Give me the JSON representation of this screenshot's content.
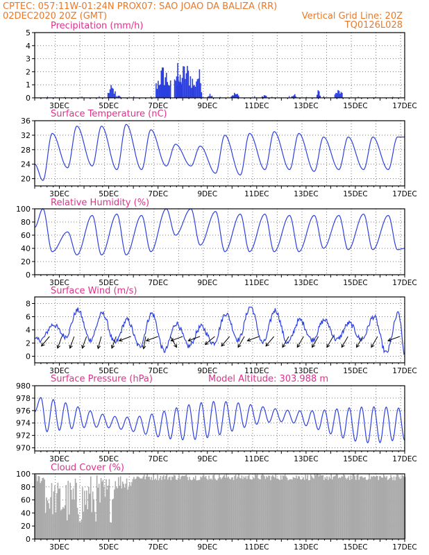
{
  "header": {
    "line1_left": "CPTEC:   057:11W-01:24N   PROX07: SAO JOAO DA BALIZA (RR)",
    "line2_left": "02DEC2020 20Z (GMT)",
    "line2_right": "Vertical Grid Line: 20Z",
    "line3_right": "TQ0126L028"
  },
  "colors": {
    "header": "#e8792a",
    "panel_title": "#e0308c",
    "series": "#2b3fe0",
    "cloud": "#aaaaaa",
    "grid": "#777777"
  },
  "chart_data": [
    {
      "type": "bar",
      "title": "Precipitation (mm/h)",
      "ylim": [
        0,
        5
      ],
      "yticks": [
        0,
        1,
        2,
        3,
        4,
        5
      ],
      "xlabels": [
        "3DEC",
        "5DEC",
        "7DEC",
        "9DEC",
        "11DEC",
        "13DEC",
        "15DEC",
        "17DEC"
      ],
      "bursts": [
        {
          "x_day": 5.1,
          "width_days": 0.3,
          "max": 1.0
        },
        {
          "x_day": 5.4,
          "width_days": 0.15,
          "max": 0.2
        },
        {
          "x_day": 7.2,
          "width_days": 0.6,
          "max": 2.6
        },
        {
          "x_day": 7.8,
          "width_days": 0.3,
          "max": 3.1
        },
        {
          "x_day": 8.1,
          "width_days": 0.7,
          "max": 2.8
        },
        {
          "x_day": 8.6,
          "width_days": 0.3,
          "max": 2.5
        },
        {
          "x_day": 9.1,
          "width_days": 0.2,
          "max": 0.4
        },
        {
          "x_day": 10.1,
          "width_days": 0.3,
          "max": 0.45
        },
        {
          "x_day": 11.3,
          "width_days": 0.2,
          "max": 0.3
        },
        {
          "x_day": 12.5,
          "width_days": 0.2,
          "max": 0.3
        },
        {
          "x_day": 13.5,
          "width_days": 0.15,
          "max": 0.7
        },
        {
          "x_day": 14.3,
          "width_days": 0.3,
          "max": 0.7
        }
      ]
    },
    {
      "type": "line",
      "title": "Surface Temperature (nC)",
      "ylim": [
        18,
        36
      ],
      "yticks": [
        20,
        24,
        28,
        32,
        36
      ],
      "xlabels": [
        "3DEC",
        "5DEC",
        "7DEC",
        "9DEC",
        "11DEC",
        "13DEC",
        "15DEC",
        "17DEC"
      ],
      "peaks": [
        32.5,
        34.5,
        34.5,
        35.0,
        33.5,
        29.5,
        29.0,
        32.0,
        32.5,
        33.0,
        32.5,
        31.5,
        31.5,
        31.5,
        31.5
      ],
      "troughs": [
        19.5,
        23.0,
        23.5,
        22.5,
        22.5,
        23.5,
        23.5,
        21.5,
        21.0,
        22.5,
        22.5,
        22.0,
        22.5,
        22.5,
        22.5
      ],
      "start": 24.0,
      "end": 31.5
    },
    {
      "type": "line",
      "title": "Relative Humidity (%)",
      "ylim": [
        0,
        100
      ],
      "yticks": [
        0,
        20,
        40,
        60,
        80,
        100
      ],
      "xlabels": [
        "3DEC",
        "5DEC",
        "7DEC",
        "9DEC",
        "11DEC",
        "13DEC",
        "15DEC",
        "17DEC"
      ],
      "peaks": [
        100,
        65,
        90,
        92,
        90,
        100,
        100,
        96,
        92,
        92,
        90,
        90,
        90,
        92,
        90
      ],
      "troughs": [
        35,
        30,
        30,
        30,
        35,
        60,
        45,
        35,
        35,
        35,
        35,
        40,
        38,
        38,
        38
      ],
      "start": 72,
      "end": 40
    },
    {
      "type": "line",
      "title": "Surface Wind (m/s)",
      "ylim": [
        -1,
        9
      ],
      "yticks": [
        0,
        2,
        4,
        6,
        8
      ],
      "xlabels": [
        "3DEC",
        "5DEC",
        "7DEC",
        "9DEC",
        "11DEC",
        "13DEC",
        "15DEC",
        "17DEC"
      ],
      "peaks": [
        4.8,
        7.0,
        6.5,
        5.5,
        6.5,
        5.0,
        4.5,
        6.5,
        7.5,
        7.0,
        5.5,
        5.5,
        5.0,
        6.0,
        6.5
      ],
      "troughs": [
        2.5,
        3.0,
        2.5,
        2.0,
        1.5,
        0.8,
        1.5,
        2.0,
        2.5,
        2.0,
        2.0,
        2.5,
        2.5,
        2.5,
        0.5
      ],
      "start": 2.5,
      "end": 0.4,
      "arrows": [
        {
          "x_day": 2.6,
          "dir_deg": 230
        },
        {
          "x_day": 3.1,
          "dir_deg": 250
        },
        {
          "x_day": 3.6,
          "dir_deg": 250
        },
        {
          "x_day": 4.1,
          "dir_deg": 250
        },
        {
          "x_day": 4.7,
          "dir_deg": 255
        },
        {
          "x_day": 5.3,
          "dir_deg": 250
        },
        {
          "x_day": 5.9,
          "dir_deg": 200
        },
        {
          "x_day": 6.5,
          "dir_deg": 260
        },
        {
          "x_day": 7.0,
          "dir_deg": 200
        },
        {
          "x_day": 7.5,
          "dir_deg": 300
        },
        {
          "x_day": 8.0,
          "dir_deg": 200
        },
        {
          "x_day": 8.7,
          "dir_deg": 200
        },
        {
          "x_day": 9.3,
          "dir_deg": 220
        },
        {
          "x_day": 9.9,
          "dir_deg": 230
        },
        {
          "x_day": 10.5,
          "dir_deg": 240
        },
        {
          "x_day": 11.1,
          "dir_deg": 200
        },
        {
          "x_day": 11.7,
          "dir_deg": 230
        },
        {
          "x_day": 12.3,
          "dir_deg": 240
        },
        {
          "x_day": 12.9,
          "dir_deg": 240
        },
        {
          "x_day": 13.5,
          "dir_deg": 240
        },
        {
          "x_day": 14.1,
          "dir_deg": 240
        },
        {
          "x_day": 14.7,
          "dir_deg": 240
        },
        {
          "x_day": 15.3,
          "dir_deg": 240
        },
        {
          "x_day": 15.9,
          "dir_deg": 240
        },
        {
          "x_day": 16.8,
          "dir_deg": 200
        }
      ]
    },
    {
      "type": "line",
      "title": "Surface Pressure (hPa)",
      "annotation": "Model Altitude: 303.988 m",
      "ylim": [
        969.5,
        980
      ],
      "yticks": [
        970,
        972,
        974,
        976,
        978,
        980
      ],
      "xlabels": [
        "3DEC",
        "5DEC",
        "7DEC",
        "9DEC",
        "11DEC",
        "13DEC",
        "15DEC",
        "17DEC"
      ],
      "start": 975.8,
      "end": 971.2
    },
    {
      "type": "bar",
      "title": "Cloud Cover (%)",
      "ylim": [
        0,
        100
      ],
      "yticks": [
        0,
        20,
        40,
        60,
        80,
        100
      ],
      "xlabels": [
        "3DEC",
        "5DEC",
        "7DEC",
        "9DEC",
        "11DEC",
        "13DEC",
        "15DEC",
        "17DEC"
      ],
      "regime": [
        {
          "from_day": 2.0,
          "to_day": 2.4,
          "min": 85,
          "max": 100
        },
        {
          "from_day": 2.4,
          "to_day": 3.0,
          "min": 35,
          "max": 90
        },
        {
          "from_day": 3.0,
          "to_day": 4.0,
          "min": 20,
          "max": 95
        },
        {
          "from_day": 4.0,
          "to_day": 5.2,
          "min": 25,
          "max": 100
        },
        {
          "from_day": 5.2,
          "to_day": 6.0,
          "min": 75,
          "max": 100
        },
        {
          "from_day": 6.0,
          "to_day": 17.0,
          "min": 90,
          "max": 100
        }
      ]
    }
  ]
}
